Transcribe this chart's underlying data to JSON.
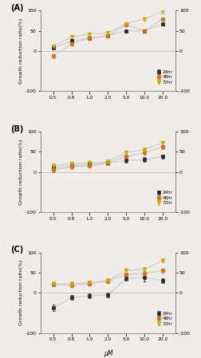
{
  "x_positions": [
    1,
    2,
    3,
    4,
    5,
    6,
    7
  ],
  "x_tick_labels": [
    "0.5",
    "0.8",
    "1.0",
    "2.0",
    "5.0",
    "10.0",
    "20.0"
  ],
  "panel_A": {
    "label": "(A)",
    "24hr": [
      8,
      25,
      32,
      38,
      50,
      50,
      68
    ],
    "48hr": [
      -12,
      18,
      32,
      38,
      65,
      50,
      80
    ],
    "72hr": [
      12,
      35,
      42,
      45,
      68,
      80,
      98
    ],
    "24hr_err": [
      3,
      4,
      4,
      4,
      4,
      4,
      4
    ],
    "48hr_err": [
      5,
      5,
      5,
      4,
      4,
      4,
      4
    ],
    "72hr_err": [
      3,
      4,
      4,
      4,
      4,
      4,
      4
    ]
  },
  "panel_B": {
    "label": "(B)",
    "24hr": [
      10,
      15,
      18,
      22,
      28,
      30,
      38
    ],
    "48hr": [
      5,
      12,
      15,
      22,
      38,
      48,
      62
    ],
    "72hr": [
      15,
      20,
      22,
      25,
      48,
      55,
      72
    ],
    "24hr_err": [
      5,
      5,
      5,
      5,
      5,
      6,
      5
    ],
    "48hr_err": [
      5,
      5,
      5,
      5,
      5,
      5,
      5
    ],
    "72hr_err": [
      5,
      5,
      5,
      5,
      5,
      5,
      5
    ]
  },
  "panel_C": {
    "label": "(C)",
    "24hr": [
      -38,
      -12,
      -8,
      -5,
      35,
      38,
      30
    ],
    "48hr": [
      20,
      18,
      22,
      28,
      45,
      48,
      55
    ],
    "72hr": [
      22,
      22,
      25,
      30,
      55,
      58,
      80
    ],
    "24hr_err": [
      8,
      6,
      6,
      6,
      6,
      10,
      6
    ],
    "48hr_err": [
      5,
      5,
      5,
      5,
      5,
      5,
      5
    ],
    "72hr_err": [
      5,
      5,
      5,
      5,
      5,
      5,
      5
    ]
  },
  "color_24hr": "#2b2b2b",
  "color_48hr": "#d4711a",
  "color_72hr": "#c8aa00",
  "marker_24hr": "s",
  "marker_48hr": "o",
  "marker_72hr": "v",
  "markersize": 3.5,
  "linewidth": 0.8,
  "line_color": "#c8c8c8",
  "ylabel": "Growth reduction ratio(%)",
  "xlabel": "μM",
  "ylim": [
    -100,
    100
  ],
  "legend_labels": [
    "24hr",
    "48hr",
    "72hr"
  ],
  "bg_color": "#f0ede8"
}
